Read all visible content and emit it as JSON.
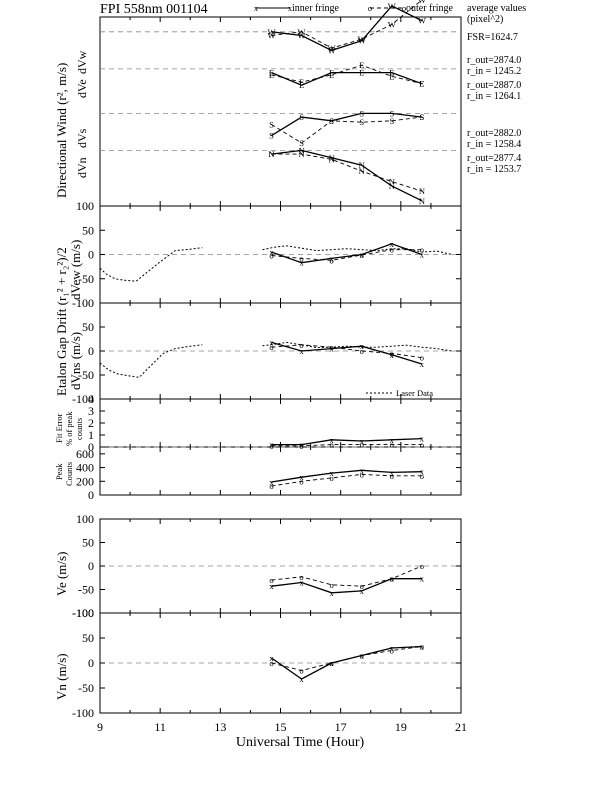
{
  "header": {
    "title": "FPI 558nm 001104",
    "legend_inner": "inner fringe",
    "legend_outer": "outer fringe",
    "avg_title_1": "average values",
    "avg_title_2": "(pixel^2)"
  },
  "annotations": {
    "fsr": "FSR=1624.7",
    "w_out": "r_out=2874.0",
    "w_in": "r_in = 1245.2",
    "e_out": "r_out=2887.0",
    "e_in": "r_in = 1264.1",
    "s_out": "r_out=2882.0",
    "s_in": "r_in = 1258.4",
    "n_out": "r_out=2877.4",
    "n_in": "r_in = 1253.7",
    "laser": "Laser Data"
  },
  "axes": {
    "xlabel": "Universal Time (Hour)",
    "x_ticks": [
      "9",
      "11",
      "13",
      "15",
      "17",
      "19",
      "21"
    ],
    "p1_ylabel": "Directional Wind (r², m/s)",
    "p1_dir": [
      "dVw",
      "dVe",
      "dVs",
      "dVn"
    ],
    "p1_top_tick": "100",
    "p23_shared_ylabel": "Etalon Gap Drift (r₁² + r₂²)/2",
    "p2_ylabel": "dVew (m/s)",
    "p3_ylabel": "dVns (m/s)",
    "p4_ylabel": [
      "Fit Error",
      "% of peak",
      "counts"
    ],
    "p5_ylabel": [
      "Peak",
      "Counts"
    ],
    "p6_ylabel": "Ve (m/s)",
    "p7_ylabel": "Vn (m/s)",
    "ticks_100": [
      "100",
      "50",
      "0",
      "-50",
      "-100"
    ],
    "ticks_p4": [
      "4",
      "3",
      "2",
      "1",
      "0"
    ],
    "ticks_p5": [
      "600",
      "400",
      "200",
      "0"
    ]
  },
  "chart_data": [
    {
      "type": "line",
      "title": "FPI 558nm 001104",
      "panel": "directional wind",
      "xlabel": "",
      "ylabel": "Directional Wind (r², m/s)",
      "xlim": [
        9,
        21
      ],
      "ylim": [
        -100,
        100
      ],
      "x": [
        14.7,
        15.7,
        16.7,
        17.7,
        18.7,
        19.7
      ],
      "series": [
        {
          "name": "dVw inner fringe",
          "marker": "W",
          "offset": 60,
          "values": [
            0,
            -5,
            -25,
            -12,
            35,
            15
          ]
        },
        {
          "name": "dVw outer fringe",
          "marker": "W",
          "offset": 60,
          "values": [
            -5,
            0,
            -22,
            -10,
            10,
            43
          ]
        },
        {
          "name": "dVe inner fringe",
          "marker": "E",
          "offset": 10,
          "values": [
            -5,
            -22,
            -5,
            -5,
            -5,
            -20
          ]
        },
        {
          "name": "dVe outer fringe",
          "marker": "E",
          "offset": 10,
          "values": [
            -8,
            -18,
            -8,
            5,
            -10,
            -20
          ]
        },
        {
          "name": "dVs inner fringe",
          "marker": "S",
          "offset": -50,
          "values": [
            -30,
            -5,
            -10,
            0,
            0,
            -5
          ]
        },
        {
          "name": "dVs outer fringe",
          "marker": "S",
          "offset": -50,
          "values": [
            -15,
            -40,
            -10,
            -12,
            -10,
            -5
          ]
        },
        {
          "name": "dVn inner fringe",
          "marker": "N",
          "offset": -100,
          "values": [
            -5,
            0,
            -10,
            -20,
            -48,
            -68
          ]
        },
        {
          "name": "dVn outer fringe",
          "marker": "N",
          "offset": -100,
          "values": [
            -5,
            -5,
            -12,
            -28,
            -42,
            -55
          ]
        }
      ]
    },
    {
      "type": "line",
      "panel": "dVew",
      "ylabel": "dVew (m/s)",
      "xlim": [
        9,
        21
      ],
      "ylim": [
        -100,
        100
      ],
      "x": [
        14.7,
        15.7,
        16.7,
        17.7,
        18.7,
        19.7
      ],
      "series": [
        {
          "name": "inner fringe",
          "values": [
            5,
            -17,
            -8,
            0,
            22,
            0
          ]
        },
        {
          "name": "outer fringe",
          "values": [
            -2,
            -8,
            -12,
            -1,
            10,
            10
          ]
        },
        {
          "name": "Laser Data",
          "x": [
            9.0,
            9.2,
            9.5,
            9.8,
            10.2,
            10.5,
            11.0,
            11.5,
            12.0,
            12.4,
            14.4,
            14.8,
            15.2,
            15.7,
            16.2,
            16.7,
            17.2,
            17.7,
            18.2,
            18.7,
            19.2,
            19.7,
            20.2,
            20.7
          ],
          "values": [
            -28,
            -40,
            -50,
            -53,
            -55,
            -40,
            -15,
            8,
            11,
            14,
            10,
            15,
            18,
            13,
            8,
            10,
            12,
            10,
            8,
            12,
            12,
            5,
            7,
            0
          ]
        }
      ]
    },
    {
      "type": "line",
      "panel": "dVns",
      "ylabel": "dVns (m/s)",
      "xlim": [
        9,
        21
      ],
      "ylim": [
        -100,
        100
      ],
      "x": [
        14.7,
        15.7,
        16.7,
        17.7,
        18.7,
        19.7
      ],
      "series": [
        {
          "name": "inner fringe",
          "values": [
            18,
            0,
            5,
            10,
            -8,
            -27
          ]
        },
        {
          "name": "outer fringe",
          "values": [
            8,
            13,
            8,
            0,
            -5,
            -14
          ]
        },
        {
          "name": "Laser Data",
          "x": [
            9.0,
            9.3,
            9.6,
            10.0,
            10.3,
            10.7,
            11.1,
            11.5,
            12.0,
            12.4,
            14.4,
            14.8,
            15.2,
            15.7,
            16.2,
            16.7,
            17.2,
            17.7,
            18.2,
            18.7,
            19.2,
            19.7,
            20.2,
            20.7
          ],
          "values": [
            -25,
            -40,
            -48,
            -52,
            -55,
            -30,
            -5,
            5,
            10,
            13,
            11,
            14,
            18,
            13,
            7,
            8,
            10,
            8,
            8,
            10,
            12,
            8,
            5,
            0
          ]
        }
      ]
    },
    {
      "type": "line",
      "panel": "fit error",
      "ylabel": "Fit Error % of peak counts",
      "xlim": [
        9,
        21
      ],
      "ylim": [
        0,
        4
      ],
      "x": [
        14.7,
        15.7,
        16.7,
        17.7,
        18.7,
        19.7
      ],
      "series": [
        {
          "name": "inner fringe",
          "values": [
            0.2,
            0.2,
            0.6,
            0.5,
            0.6,
            0.7
          ]
        },
        {
          "name": "outer fringe",
          "values": [
            0.1,
            0.1,
            0.2,
            0.2,
            0.2,
            0.2
          ]
        }
      ]
    },
    {
      "type": "line",
      "panel": "peak counts",
      "ylabel": "Peak Counts",
      "xlim": [
        9,
        21
      ],
      "ylim": [
        0,
        700
      ],
      "x": [
        14.7,
        15.7,
        16.7,
        17.7,
        18.7,
        19.7
      ],
      "series": [
        {
          "name": "inner fringe",
          "values": [
            190,
            260,
            320,
            360,
            330,
            340
          ]
        },
        {
          "name": "outer fringe",
          "values": [
            130,
            200,
            250,
            300,
            280,
            280
          ]
        }
      ]
    },
    {
      "type": "line",
      "panel": "Ve",
      "ylabel": "Ve (m/s)",
      "xlim": [
        9,
        21
      ],
      "ylim": [
        -100,
        100
      ],
      "x": [
        14.7,
        15.7,
        16.7,
        17.7,
        18.7,
        19.7
      ],
      "series": [
        {
          "name": "inner fringe",
          "values": [
            -43,
            -35,
            -57,
            -53,
            -27,
            -27
          ]
        },
        {
          "name": "outer fringe",
          "values": [
            -30,
            -23,
            -40,
            -43,
            -27,
            0
          ]
        }
      ]
    },
    {
      "type": "line",
      "panel": "Vn",
      "ylabel": "Vn (m/s)",
      "xlim": [
        9,
        21
      ],
      "ylim": [
        -100,
        100
      ],
      "x": [
        14.7,
        15.7,
        16.7,
        17.7,
        18.7,
        19.7
      ],
      "series": [
        {
          "name": "inner fringe",
          "values": [
            10,
            -32,
            0,
            15,
            30,
            33
          ]
        },
        {
          "name": "outer fringe",
          "values": [
            0,
            -15,
            0,
            15,
            25,
            33
          ]
        }
      ]
    }
  ]
}
